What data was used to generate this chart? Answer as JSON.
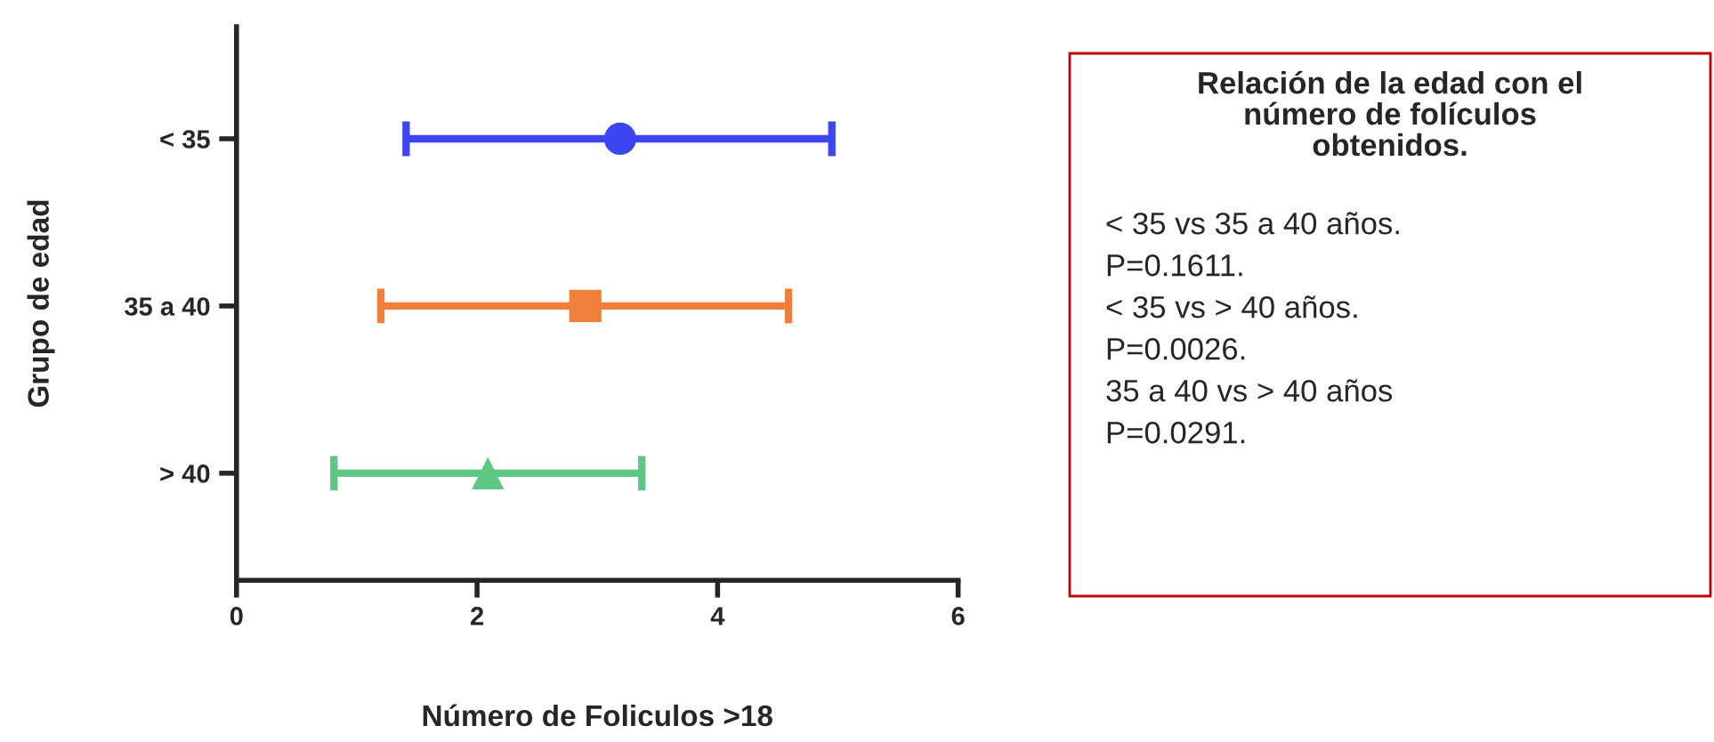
{
  "chart_data": {
    "type": "scatter",
    "orientation": "horizontal",
    "xlabel": "Número de Foliculos >18",
    "ylabel": "Grupo de edad",
    "categories": [
      "< 35",
      "35 a 40",
      "> 40"
    ],
    "series": [
      {
        "color": "#3b45f0",
        "marker": "circle",
        "values": [
          3.19,
          null,
          null
        ],
        "errors": [
          [
            1.41,
            4.95
          ],
          null,
          null
        ]
      },
      {
        "color": "#f07f3c",
        "marker": "square",
        "values": [
          null,
          2.9,
          null
        ],
        "errors": [
          null,
          [
            1.2,
            4.59
          ],
          null
        ]
      },
      {
        "color": "#5cc682",
        "marker": "triangle",
        "values": [
          null,
          null,
          2.09
        ],
        "errors": [
          null,
          null,
          [
            0.81,
            3.37
          ]
        ]
      }
    ],
    "xlim": [
      0,
      6
    ],
    "xticks": [
      0,
      2,
      4,
      6
    ],
    "grid": false,
    "legend": false,
    "annotations": [
      "Relación de la edad con el\nnúmero de folículos\nobtenidos.",
      "< 35 vs 35 a 40 años.",
      "P=0.1611.",
      "< 35 vs > 40 años.",
      "P=0.0026.",
      "35 a 40 vs > 40 años",
      "P=0.0291."
    ]
  }
}
